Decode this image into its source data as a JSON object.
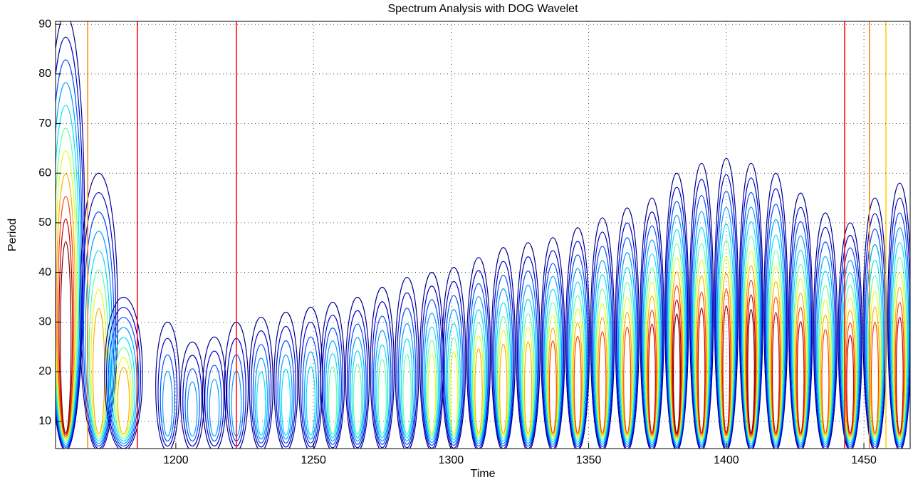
{
  "chart_data": {
    "type": "contour",
    "title": "Spectrum Analysis with DOG Wavelet",
    "x_label": "Time",
    "y_label": "Period",
    "xlim": [
      1156.3,
      1466.8
    ],
    "ylim": [
      4.5,
      90.6
    ],
    "xticks": [
      1200,
      1250,
      1300,
      1350,
      1400,
      1450
    ],
    "yticks": [
      10,
      20,
      30,
      40,
      50,
      60,
      70,
      80,
      90
    ],
    "grid": true,
    "level_colors": [
      "#00008f",
      "#0000d0",
      "#0050ff",
      "#00a0ff",
      "#00e0ff",
      "#60ff9f",
      "#dfff20",
      "#ffb000",
      "#ff4000",
      "#c00000",
      "#800000"
    ],
    "blobs": [
      {
        "x": 1160,
        "top": 92,
        "n": 11
      },
      {
        "x": 1172,
        "top": 60,
        "n": 8
      },
      {
        "x": 1181,
        "top": 35,
        "n": 8
      },
      {
        "x": 1197,
        "top": 30,
        "n": 4
      },
      {
        "x": 1206,
        "top": 26,
        "n": 4
      },
      {
        "x": 1214,
        "top": 27,
        "n": 4
      },
      {
        "x": 1222,
        "top": 30,
        "n": 4
      },
      {
        "x": 1231,
        "top": 31,
        "n": 5
      },
      {
        "x": 1240,
        "top": 32,
        "n": 5
      },
      {
        "x": 1249,
        "top": 33,
        "n": 5
      },
      {
        "x": 1257,
        "top": 34,
        "n": 6
      },
      {
        "x": 1266,
        "top": 35,
        "n": 6
      },
      {
        "x": 1275,
        "top": 37,
        "n": 6
      },
      {
        "x": 1284,
        "top": 39,
        "n": 6
      },
      {
        "x": 1293,
        "top": 40,
        "n": 7
      },
      {
        "x": 1301,
        "top": 41,
        "n": 7
      },
      {
        "x": 1310,
        "top": 43,
        "n": 8
      },
      {
        "x": 1319,
        "top": 45,
        "n": 8
      },
      {
        "x": 1328,
        "top": 46,
        "n": 8
      },
      {
        "x": 1337,
        "top": 47,
        "n": 9
      },
      {
        "x": 1346,
        "top": 49,
        "n": 9
      },
      {
        "x": 1355,
        "top": 51,
        "n": 9
      },
      {
        "x": 1364,
        "top": 53,
        "n": 9
      },
      {
        "x": 1373,
        "top": 55,
        "n": 10
      },
      {
        "x": 1382,
        "top": 60,
        "n": 11
      },
      {
        "x": 1391,
        "top": 62,
        "n": 10
      },
      {
        "x": 1400,
        "top": 63,
        "n": 10
      },
      {
        "x": 1409,
        "top": 62,
        "n": 11
      },
      {
        "x": 1418,
        "top": 60,
        "n": 10
      },
      {
        "x": 1427,
        "top": 56,
        "n": 10
      },
      {
        "x": 1436,
        "top": 52,
        "n": 9
      },
      {
        "x": 1445,
        "top": 50,
        "n": 10
      },
      {
        "x": 1454,
        "top": 55,
        "n": 9
      },
      {
        "x": 1463,
        "top": 58,
        "n": 10
      }
    ],
    "vlines": [
      {
        "x": 1168,
        "color": "#ff8000"
      },
      {
        "x": 1186,
        "color": "#ff0000"
      },
      {
        "x": 1222,
        "color": "#ff0000"
      },
      {
        "x": 1443,
        "color": "#ff0000"
      },
      {
        "x": 1452,
        "color": "#ff8000"
      },
      {
        "x": 1458,
        "color": "#ffd000"
      }
    ]
  }
}
